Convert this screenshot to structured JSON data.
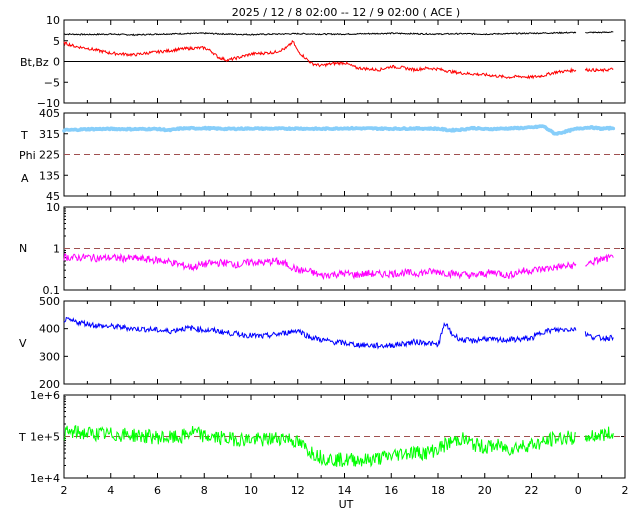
{
  "title": "2025 / 12 /  8   02:00 -- 12 /  9   02:00 ( ACE )",
  "xlabel": "UT",
  "x_ticks": [
    "2",
    "4",
    "6",
    "8",
    "10",
    "12",
    "14",
    "16",
    "18",
    "20",
    "22",
    "0",
    "2"
  ],
  "colors": {
    "bt": "#000000",
    "bz": "#ff0000",
    "t": "#87cefa",
    "phi": "#87cefa",
    "n": "#ff00ff",
    "v": "#0000ff",
    "temp": "#00ff00",
    "ref_line": "#a05050"
  },
  "chart_data": [
    {
      "type": "line",
      "panel": "mag",
      "ylabel": "Bt,Bz",
      "yticks": [
        "10",
        "5",
        "0",
        "−5",
        "−10"
      ],
      "ylim": [
        -10,
        10
      ],
      "x_range_hours": [
        2,
        26
      ],
      "series": [
        {
          "name": "Bt",
          "x": [
            2,
            3,
            4,
            5,
            6,
            7,
            8,
            9,
            10,
            11,
            12,
            13,
            14,
            15,
            16,
            17,
            18,
            19,
            20,
            21,
            22,
            23,
            24,
            25,
            25.5
          ],
          "values": [
            6.6,
            6.5,
            6.6,
            6.4,
            6.6,
            6.7,
            6.8,
            6.6,
            6.5,
            6.6,
            6.7,
            6.6,
            6.6,
            6.7,
            6.8,
            6.7,
            6.6,
            6.7,
            6.6,
            6.7,
            6.8,
            6.9,
            7.0,
            7.0,
            7.1
          ]
        },
        {
          "name": "Bz",
          "x": [
            2,
            2.5,
            3,
            3.5,
            4,
            4.5,
            5,
            5.5,
            6,
            6.5,
            7,
            7.5,
            8,
            8.3,
            8.6,
            9,
            9.5,
            10,
            10.5,
            11,
            11.5,
            11.8,
            12,
            12.3,
            12.6,
            13,
            13.5,
            14,
            14.5,
            15,
            15.5,
            16,
            16.5,
            17,
            17.5,
            18,
            18.5,
            19,
            19.5,
            20,
            20.5,
            21,
            21.5,
            22,
            22.5,
            23,
            24,
            24.5,
            25,
            25.5
          ],
          "values": [
            4.5,
            3.6,
            3.2,
            2.6,
            2.0,
            1.8,
            1.6,
            2.0,
            2.3,
            2.6,
            3.0,
            3.2,
            3.3,
            2.5,
            1.0,
            0.3,
            1.0,
            1.8,
            2.0,
            2.2,
            3.2,
            4.8,
            2.5,
            1.0,
            -0.5,
            -1.0,
            -0.5,
            -0.3,
            -1.5,
            -1.8,
            -2.0,
            -1.2,
            -1.5,
            -2.0,
            -1.6,
            -1.8,
            -2.4,
            -2.8,
            -3.0,
            -3.2,
            -3.5,
            -3.8,
            -3.6,
            -3.8,
            -3.4,
            -2.6,
            -2.0,
            -2.0,
            -2.2,
            -1.8
          ]
        }
      ]
    },
    {
      "type": "scatter",
      "panel": "angle",
      "ylabel_t": "T",
      "ylabel_phi": "Phi",
      "ylabel_a": "A",
      "yticks": [
        "405",
        "315",
        "225",
        "135",
        "45"
      ],
      "ylim": [
        45,
        405
      ],
      "ref_value": 225,
      "series": [
        {
          "name": "Phi",
          "x": [
            2,
            3,
            4,
            5,
            6,
            6.5,
            7,
            8,
            9,
            10,
            11,
            12,
            13,
            14,
            15,
            16,
            17,
            18,
            18.5,
            19,
            19.5,
            20,
            21,
            22,
            22.5,
            23,
            23.2,
            24,
            24.5,
            25,
            25.5
          ],
          "values": [
            330,
            335,
            336,
            335,
            336,
            330,
            338,
            339,
            336,
            338,
            337,
            338,
            336,
            339,
            338,
            337,
            338,
            337,
            330,
            333,
            340,
            335,
            338,
            342,
            348,
            315,
            318,
            338,
            343,
            337,
            340
          ]
        }
      ]
    },
    {
      "type": "line",
      "panel": "density",
      "ylabel": "N",
      "scale": "log",
      "yticks": [
        "10",
        "1",
        "0.1"
      ],
      "ylim": [
        0.1,
        10
      ],
      "ref_value": 1,
      "series": [
        {
          "name": "N",
          "x": [
            2,
            2.5,
            3,
            3.5,
            4,
            4.5,
            5,
            5.5,
            6,
            6.5,
            7,
            7.5,
            8,
            8.5,
            9,
            9.5,
            10,
            10.5,
            11,
            11.5,
            12,
            12.5,
            13,
            13.5,
            14,
            14.5,
            15,
            15.5,
            16,
            16.5,
            17,
            17.5,
            18,
            18.5,
            19,
            19.5,
            20,
            20.5,
            21,
            21.5,
            22,
            22.5,
            23,
            24,
            24.5,
            25,
            25.5
          ],
          "values": [
            0.62,
            0.6,
            0.62,
            0.58,
            0.6,
            0.58,
            0.58,
            0.55,
            0.52,
            0.48,
            0.4,
            0.35,
            0.42,
            0.45,
            0.45,
            0.4,
            0.48,
            0.45,
            0.5,
            0.42,
            0.3,
            0.28,
            0.22,
            0.24,
            0.25,
            0.23,
            0.25,
            0.24,
            0.25,
            0.26,
            0.25,
            0.27,
            0.28,
            0.25,
            0.24,
            0.22,
            0.25,
            0.27,
            0.22,
            0.28,
            0.3,
            0.32,
            0.35,
            0.4,
            0.45,
            0.55,
            0.6
          ]
        }
      ]
    },
    {
      "type": "line",
      "panel": "speed",
      "ylabel": "V",
      "yticks": [
        "500",
        "400",
        "300",
        "200"
      ],
      "ylim": [
        200,
        500
      ],
      "series": [
        {
          "name": "V",
          "x": [
            2,
            2.5,
            3,
            3.5,
            4,
            4.5,
            5,
            5.5,
            6,
            6.5,
            7,
            7.5,
            8,
            8.5,
            9,
            9.5,
            10,
            10.5,
            11,
            11.5,
            12,
            12.5,
            13,
            13.5,
            14,
            14.5,
            15,
            15.5,
            16,
            16.5,
            17,
            17.5,
            18,
            18.3,
            18.6,
            19,
            19.5,
            20,
            20.5,
            21,
            21.5,
            22,
            22.5,
            23,
            24,
            24.5,
            25,
            25.5
          ],
          "values": [
            432,
            425,
            418,
            410,
            408,
            405,
            400,
            398,
            395,
            390,
            400,
            402,
            395,
            392,
            385,
            380,
            375,
            372,
            378,
            385,
            395,
            370,
            360,
            352,
            348,
            342,
            340,
            338,
            340,
            345,
            352,
            350,
            340,
            420,
            380,
            360,
            355,
            365,
            358,
            360,
            362,
            365,
            390,
            395,
            400,
            372,
            366,
            368
          ]
        }
      ]
    },
    {
      "type": "line",
      "panel": "temperature",
      "ylabel": "T",
      "scale": "log",
      "yticks": [
        "1e+6",
        "1e+5",
        "1e+4"
      ],
      "ylim": [
        10000,
        1000000
      ],
      "ref_value": 100000,
      "series": [
        {
          "name": "T",
          "x": [
            2,
            2.5,
            3,
            3.5,
            4,
            4.5,
            5,
            5.5,
            6,
            6.5,
            7,
            7.5,
            8,
            8.5,
            9,
            9.5,
            10,
            10.5,
            11,
            11.5,
            12,
            12.5,
            13,
            13.5,
            14,
            14.5,
            15,
            15.5,
            16,
            16.5,
            17,
            17.5,
            18,
            18.5,
            19,
            19.5,
            20,
            20.5,
            21,
            21.5,
            22,
            22.5,
            23,
            24,
            24.5,
            25,
            25.5
          ],
          "values": [
            120000,
            125000,
            118000,
            115000,
            112000,
            110000,
            108000,
            100000,
            96000,
            92000,
            95000,
            130000,
            100000,
            95000,
            88000,
            86000,
            85000,
            82000,
            90000,
            95000,
            70000,
            45000,
            32000,
            28000,
            27000,
            28000,
            27000,
            30000,
            34000,
            40000,
            42000,
            40000,
            50000,
            70000,
            90000,
            65000,
            55000,
            60000,
            50000,
            58000,
            65000,
            70000,
            90000,
            95000,
            100000,
            110000,
            120000
          ]
        }
      ]
    }
  ]
}
